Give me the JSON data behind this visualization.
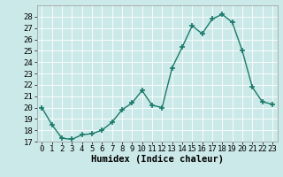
{
  "x": [
    0,
    1,
    2,
    3,
    4,
    5,
    6,
    7,
    8,
    9,
    10,
    11,
    12,
    13,
    14,
    15,
    16,
    17,
    18,
    19,
    20,
    21,
    22,
    23
  ],
  "y": [
    20,
    18.5,
    17.3,
    17.2,
    17.6,
    17.7,
    18.0,
    18.7,
    19.8,
    20.4,
    21.5,
    20.2,
    20.0,
    23.5,
    25.3,
    27.2,
    26.5,
    27.8,
    28.2,
    27.5,
    25.0,
    21.8,
    20.5,
    20.3
  ],
  "line_color": "#1a7a6a",
  "marker": "+",
  "marker_size": 4,
  "line_width": 1.0,
  "xlabel": "Humidex (Indice chaleur)",
  "ylim": [
    17,
    29
  ],
  "yticks": [
    17,
    18,
    19,
    20,
    21,
    22,
    23,
    24,
    25,
    26,
    27,
    28
  ],
  "xtick_labels": [
    "0",
    "1",
    "2",
    "3",
    "4",
    "5",
    "6",
    "7",
    "8",
    "9",
    "10",
    "11",
    "12",
    "13",
    "14",
    "15",
    "16",
    "17",
    "18",
    "19",
    "20",
    "21",
    "22",
    "23"
  ],
  "bg_color": "#cce9e9",
  "grid_color": "#b0d0d0",
  "tick_fontsize": 6.5,
  "xlabel_fontsize": 7.5
}
